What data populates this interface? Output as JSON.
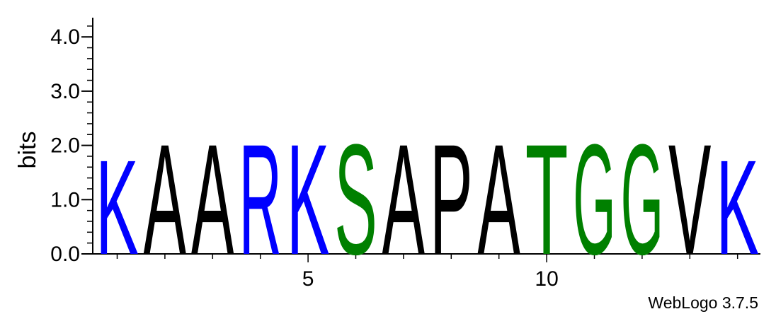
{
  "chart_data": {
    "type": "sequence-logo",
    "ylabel": "bits",
    "ylim": [
      0,
      4.3
    ],
    "yticks": [
      {
        "value": 0,
        "label": "0.0"
      },
      {
        "value": 1,
        "label": "1.0"
      },
      {
        "value": 2,
        "label": "2.0"
      },
      {
        "value": 3,
        "label": "3.0"
      },
      {
        "value": 4,
        "label": "4.0"
      }
    ],
    "xticks": [
      {
        "position": 5,
        "label": "5"
      },
      {
        "position": 10,
        "label": "10"
      }
    ],
    "positions": [
      {
        "pos": 1,
        "letter": "K",
        "bits": 1.78,
        "color": "#0000ff"
      },
      {
        "pos": 2,
        "letter": "A",
        "bits": 2.08,
        "color": "#000000"
      },
      {
        "pos": 3,
        "letter": "A",
        "bits": 2.08,
        "color": "#000000"
      },
      {
        "pos": 4,
        "letter": "R",
        "bits": 2.08,
        "color": "#0000ff"
      },
      {
        "pos": 5,
        "letter": "K",
        "bits": 2.08,
        "color": "#0000ff"
      },
      {
        "pos": 6,
        "letter": "S",
        "bits": 2.08,
        "color": "#008000"
      },
      {
        "pos": 7,
        "letter": "A",
        "bits": 2.08,
        "color": "#000000"
      },
      {
        "pos": 8,
        "letter": "P",
        "bits": 2.08,
        "color": "#000000"
      },
      {
        "pos": 9,
        "letter": "A",
        "bits": 2.08,
        "color": "#000000"
      },
      {
        "pos": 10,
        "letter": "T",
        "bits": 2.08,
        "color": "#008000"
      },
      {
        "pos": 11,
        "letter": "G",
        "bits": 2.08,
        "color": "#008000"
      },
      {
        "pos": 12,
        "letter": "G",
        "bits": 2.08,
        "color": "#008000"
      },
      {
        "pos": 13,
        "letter": "V",
        "bits": 2.08,
        "color": "#000000"
      },
      {
        "pos": 14,
        "letter": "K",
        "bits": 1.78,
        "color": "#0000ff"
      }
    ]
  },
  "footer": {
    "credit": "WebLogo 3.7.5"
  }
}
